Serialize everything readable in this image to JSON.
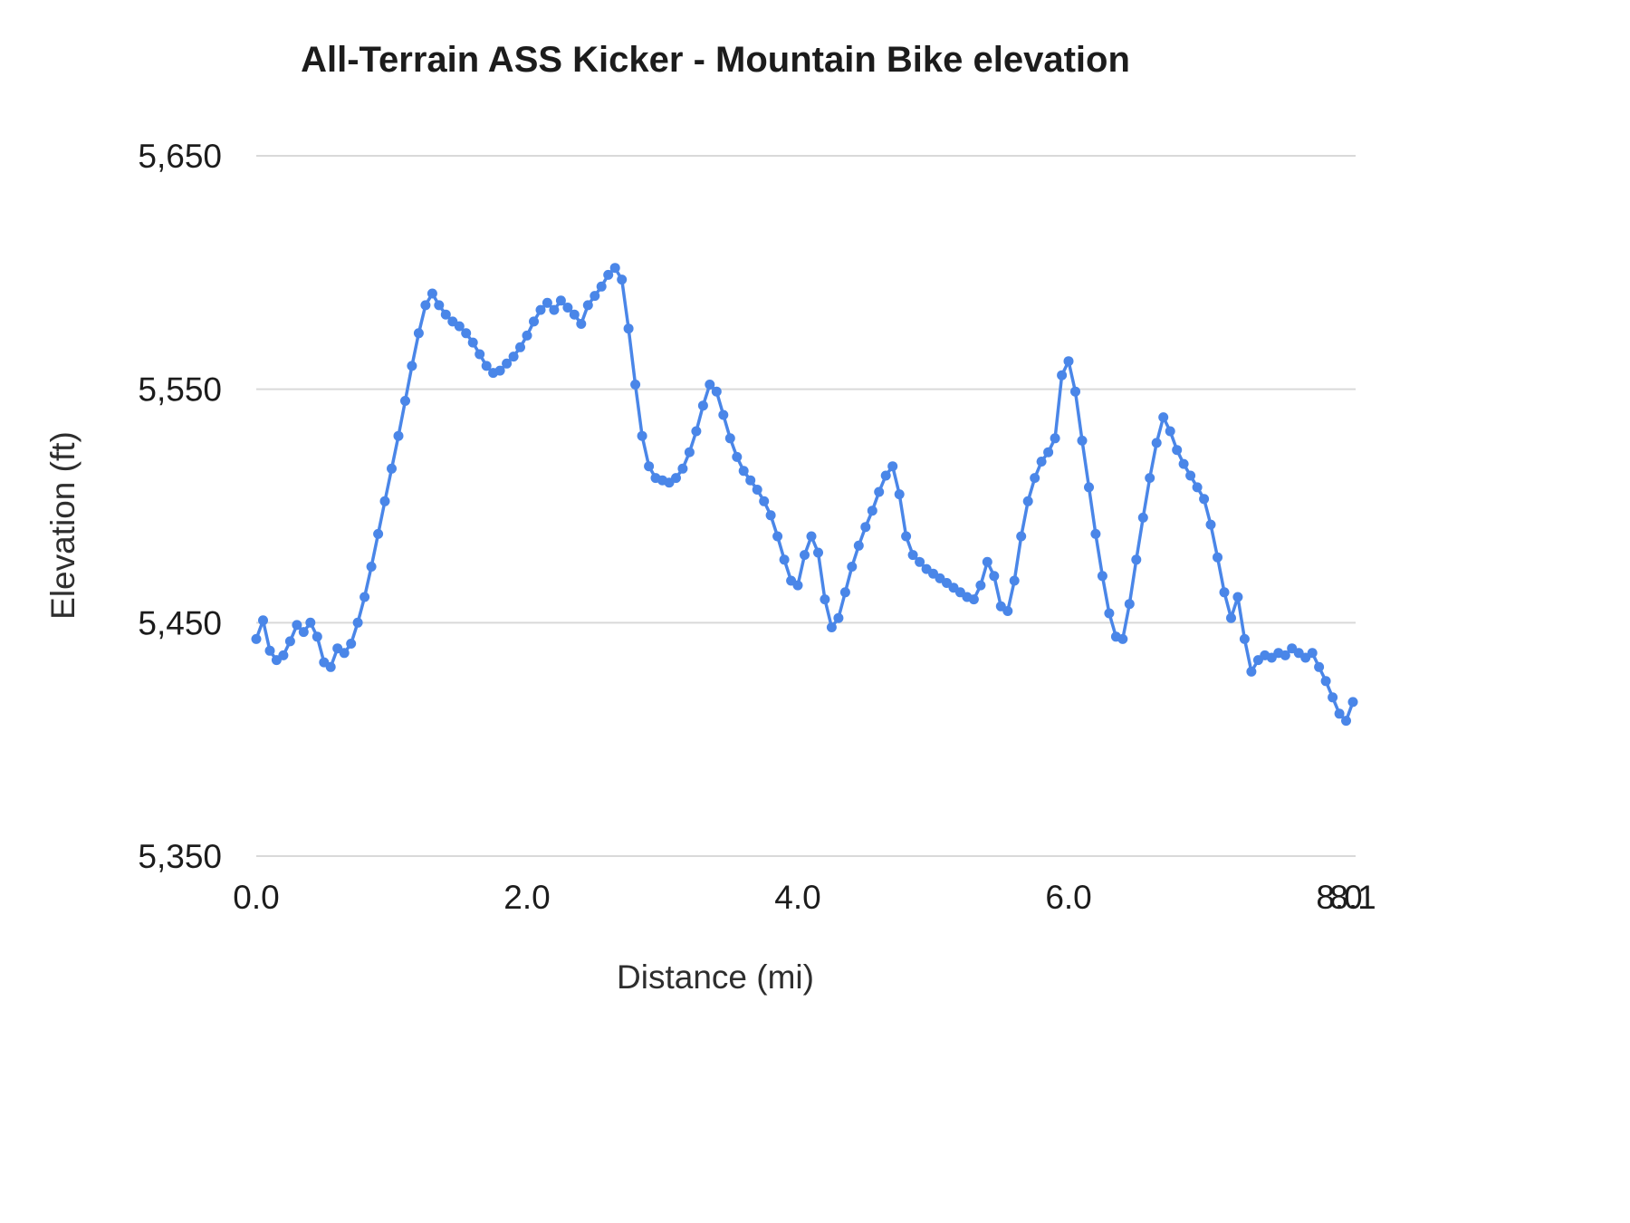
{
  "title": "All-Terrain ASS Kicker - Mountain Bike elevation",
  "style": {
    "line_color": "#4a86e8",
    "grid_color": "#d9d9d9",
    "tick_text_color": "#1c1c1c",
    "background": "#ffffff",
    "point_radius": 5.5,
    "line_width": 3.5
  },
  "chart_data": {
    "type": "line",
    "title": "All-Terrain ASS Kicker - Mountain Bike elevation",
    "xlabel": "Distance (mi)",
    "ylabel": "Elevation (ft)",
    "xlim": [
      0,
      8.12
    ],
    "ylim": [
      5350,
      5650
    ],
    "grid": "horizontal",
    "legend": "none",
    "x_ticks": [
      {
        "value": 0.0,
        "label": "0.0"
      },
      {
        "value": 2.0,
        "label": "2.0"
      },
      {
        "value": 4.0,
        "label": "4.0"
      },
      {
        "value": 6.0,
        "label": "6.0"
      },
      {
        "value": 8.0,
        "label": "8.0"
      },
      {
        "value": 8.1,
        "label": "8.1"
      }
    ],
    "y_ticks": [
      {
        "value": 5350,
        "label": "5,350"
      },
      {
        "value": 5450,
        "label": "5,450"
      },
      {
        "value": 5550,
        "label": "5,550"
      },
      {
        "value": 5650,
        "label": "5,650"
      }
    ],
    "series": [
      {
        "name": "Elevation",
        "color": "#4a86e8",
        "points": [
          [
            0,
            5443
          ],
          [
            0.05,
            5451
          ],
          [
            0.1,
            5438
          ],
          [
            0.15,
            5434
          ],
          [
            0.2,
            5436
          ],
          [
            0.25,
            5442
          ],
          [
            0.3,
            5449
          ],
          [
            0.35,
            5446
          ],
          [
            0.4,
            5450
          ],
          [
            0.45,
            5444
          ],
          [
            0.5,
            5433
          ],
          [
            0.55,
            5431
          ],
          [
            0.6,
            5439
          ],
          [
            0.65,
            5437
          ],
          [
            0.7,
            5441
          ],
          [
            0.75,
            5450
          ],
          [
            0.8,
            5461
          ],
          [
            0.85,
            5474
          ],
          [
            0.9,
            5488
          ],
          [
            0.95,
            5502
          ],
          [
            1,
            5516
          ],
          [
            1.05,
            5530
          ],
          [
            1.1,
            5545
          ],
          [
            1.15,
            5560
          ],
          [
            1.2,
            5574
          ],
          [
            1.25,
            5586
          ],
          [
            1.3,
            5591
          ],
          [
            1.35,
            5586
          ],
          [
            1.4,
            5582
          ],
          [
            1.45,
            5579
          ],
          [
            1.5,
            5577
          ],
          [
            1.55,
            5574
          ],
          [
            1.6,
            5570
          ],
          [
            1.65,
            5565
          ],
          [
            1.7,
            5560
          ],
          [
            1.75,
            5557
          ],
          [
            1.8,
            5558
          ],
          [
            1.85,
            5561
          ],
          [
            1.9,
            5564
          ],
          [
            1.95,
            5568
          ],
          [
            2,
            5573
          ],
          [
            2.05,
            5579
          ],
          [
            2.1,
            5584
          ],
          [
            2.15,
            5587
          ],
          [
            2.2,
            5584
          ],
          [
            2.25,
            5588
          ],
          [
            2.3,
            5585
          ],
          [
            2.35,
            5582
          ],
          [
            2.4,
            5578
          ],
          [
            2.45,
            5586
          ],
          [
            2.5,
            5590
          ],
          [
            2.55,
            5594
          ],
          [
            2.6,
            5599
          ],
          [
            2.65,
            5602
          ],
          [
            2.7,
            5597
          ],
          [
            2.75,
            5576
          ],
          [
            2.8,
            5552
          ],
          [
            2.85,
            5530
          ],
          [
            2.9,
            5517
          ],
          [
            2.95,
            5512
          ],
          [
            3,
            5511
          ],
          [
            3.05,
            5510
          ],
          [
            3.1,
            5512
          ],
          [
            3.15,
            5516
          ],
          [
            3.2,
            5523
          ],
          [
            3.25,
            5532
          ],
          [
            3.3,
            5543
          ],
          [
            3.35,
            5552
          ],
          [
            3.4,
            5549
          ],
          [
            3.45,
            5539
          ],
          [
            3.5,
            5529
          ],
          [
            3.55,
            5521
          ],
          [
            3.6,
            5515
          ],
          [
            3.65,
            5511
          ],
          [
            3.7,
            5507
          ],
          [
            3.75,
            5502
          ],
          [
            3.8,
            5496
          ],
          [
            3.85,
            5487
          ],
          [
            3.9,
            5477
          ],
          [
            3.95,
            5468
          ],
          [
            4,
            5466
          ],
          [
            4.05,
            5479
          ],
          [
            4.1,
            5487
          ],
          [
            4.15,
            5480
          ],
          [
            4.2,
            5460
          ],
          [
            4.25,
            5448
          ],
          [
            4.3,
            5452
          ],
          [
            4.35,
            5463
          ],
          [
            4.4,
            5474
          ],
          [
            4.45,
            5483
          ],
          [
            4.5,
            5491
          ],
          [
            4.55,
            5498
          ],
          [
            4.6,
            5506
          ],
          [
            4.65,
            5513
          ],
          [
            4.7,
            5517
          ],
          [
            4.75,
            5505
          ],
          [
            4.8,
            5487
          ],
          [
            4.85,
            5479
          ],
          [
            4.9,
            5476
          ],
          [
            4.95,
            5473
          ],
          [
            5,
            5471
          ],
          [
            5.05,
            5469
          ],
          [
            5.1,
            5467
          ],
          [
            5.15,
            5465
          ],
          [
            5.2,
            5463
          ],
          [
            5.25,
            5461
          ],
          [
            5.3,
            5460
          ],
          [
            5.35,
            5466
          ],
          [
            5.4,
            5476
          ],
          [
            5.45,
            5470
          ],
          [
            5.5,
            5457
          ],
          [
            5.55,
            5455
          ],
          [
            5.6,
            5468
          ],
          [
            5.65,
            5487
          ],
          [
            5.7,
            5502
          ],
          [
            5.75,
            5512
          ],
          [
            5.8,
            5519
          ],
          [
            5.85,
            5523
          ],
          [
            5.9,
            5529
          ],
          [
            5.95,
            5556
          ],
          [
            6,
            5562
          ],
          [
            6.05,
            5549
          ],
          [
            6.1,
            5528
          ],
          [
            6.15,
            5508
          ],
          [
            6.2,
            5488
          ],
          [
            6.25,
            5470
          ],
          [
            6.3,
            5454
          ],
          [
            6.35,
            5444
          ],
          [
            6.4,
            5443
          ],
          [
            6.45,
            5458
          ],
          [
            6.5,
            5477
          ],
          [
            6.55,
            5495
          ],
          [
            6.6,
            5512
          ],
          [
            6.65,
            5527
          ],
          [
            6.7,
            5538
          ],
          [
            6.75,
            5532
          ],
          [
            6.8,
            5524
          ],
          [
            6.85,
            5518
          ],
          [
            6.9,
            5513
          ],
          [
            6.95,
            5508
          ],
          [
            7,
            5503
          ],
          [
            7.05,
            5492
          ],
          [
            7.1,
            5478
          ],
          [
            7.15,
            5463
          ],
          [
            7.2,
            5452
          ],
          [
            7.25,
            5461
          ],
          [
            7.3,
            5443
          ],
          [
            7.35,
            5429
          ],
          [
            7.4,
            5434
          ],
          [
            7.45,
            5436
          ],
          [
            7.5,
            5435
          ],
          [
            7.55,
            5437
          ],
          [
            7.6,
            5436
          ],
          [
            7.65,
            5439
          ],
          [
            7.7,
            5437
          ],
          [
            7.75,
            5435
          ],
          [
            7.8,
            5437
          ],
          [
            7.85,
            5431
          ],
          [
            7.9,
            5425
          ],
          [
            7.95,
            5418
          ],
          [
            8,
            5411
          ],
          [
            8.05,
            5408
          ],
          [
            8.1,
            5416
          ]
        ]
      }
    ]
  }
}
